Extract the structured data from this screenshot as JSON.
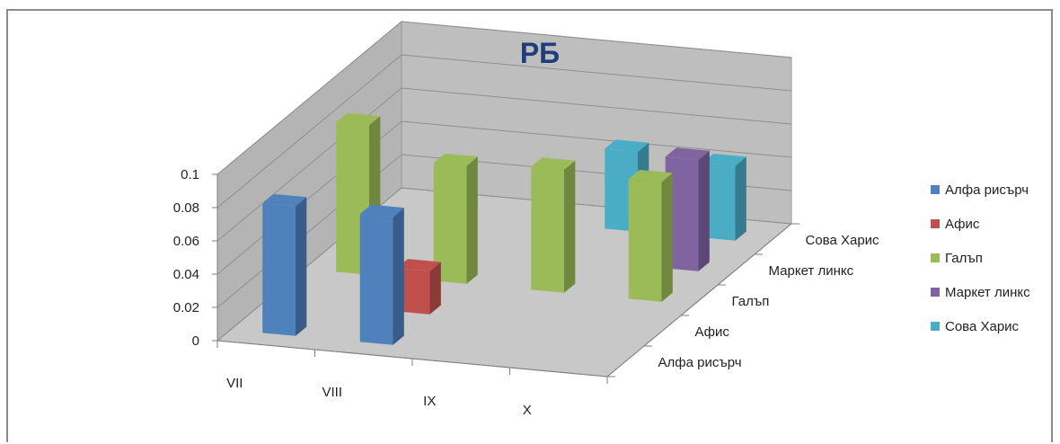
{
  "chart_data": {
    "type": "bar",
    "title": "РБ",
    "categories": [
      "VII",
      "VIII",
      "IX",
      "X"
    ],
    "series": [
      {
        "name": "Алфа рисърч",
        "color": "#4f81bd",
        "values": [
          0.078,
          0.077,
          null,
          null
        ]
      },
      {
        "name": "Афис",
        "color": "#c0504d",
        "values": [
          null,
          0.026,
          null,
          null
        ]
      },
      {
        "name": "Галъп",
        "color": "#9bbb59",
        "values": [
          0.09,
          0.071,
          0.074,
          0.072
        ]
      },
      {
        "name": "Маркет линкс",
        "color": "#8064a2",
        "values": [
          null,
          null,
          null,
          0.067
        ]
      },
      {
        "name": "Сова Харис",
        "color": "#4bacc6",
        "values": [
          null,
          null,
          0.048,
          0.045
        ]
      }
    ],
    "yticks": [
      "0",
      "0.02",
      "0.04",
      "0.06",
      "0.08",
      "0.1"
    ],
    "ylim": [
      0,
      0.1
    ],
    "depth_labels": [
      "Алфа рисърч",
      "Афис",
      "Галъп",
      "Маркет линкс",
      "Сова Харис"
    ],
    "legend_position": "right",
    "grid": true
  }
}
